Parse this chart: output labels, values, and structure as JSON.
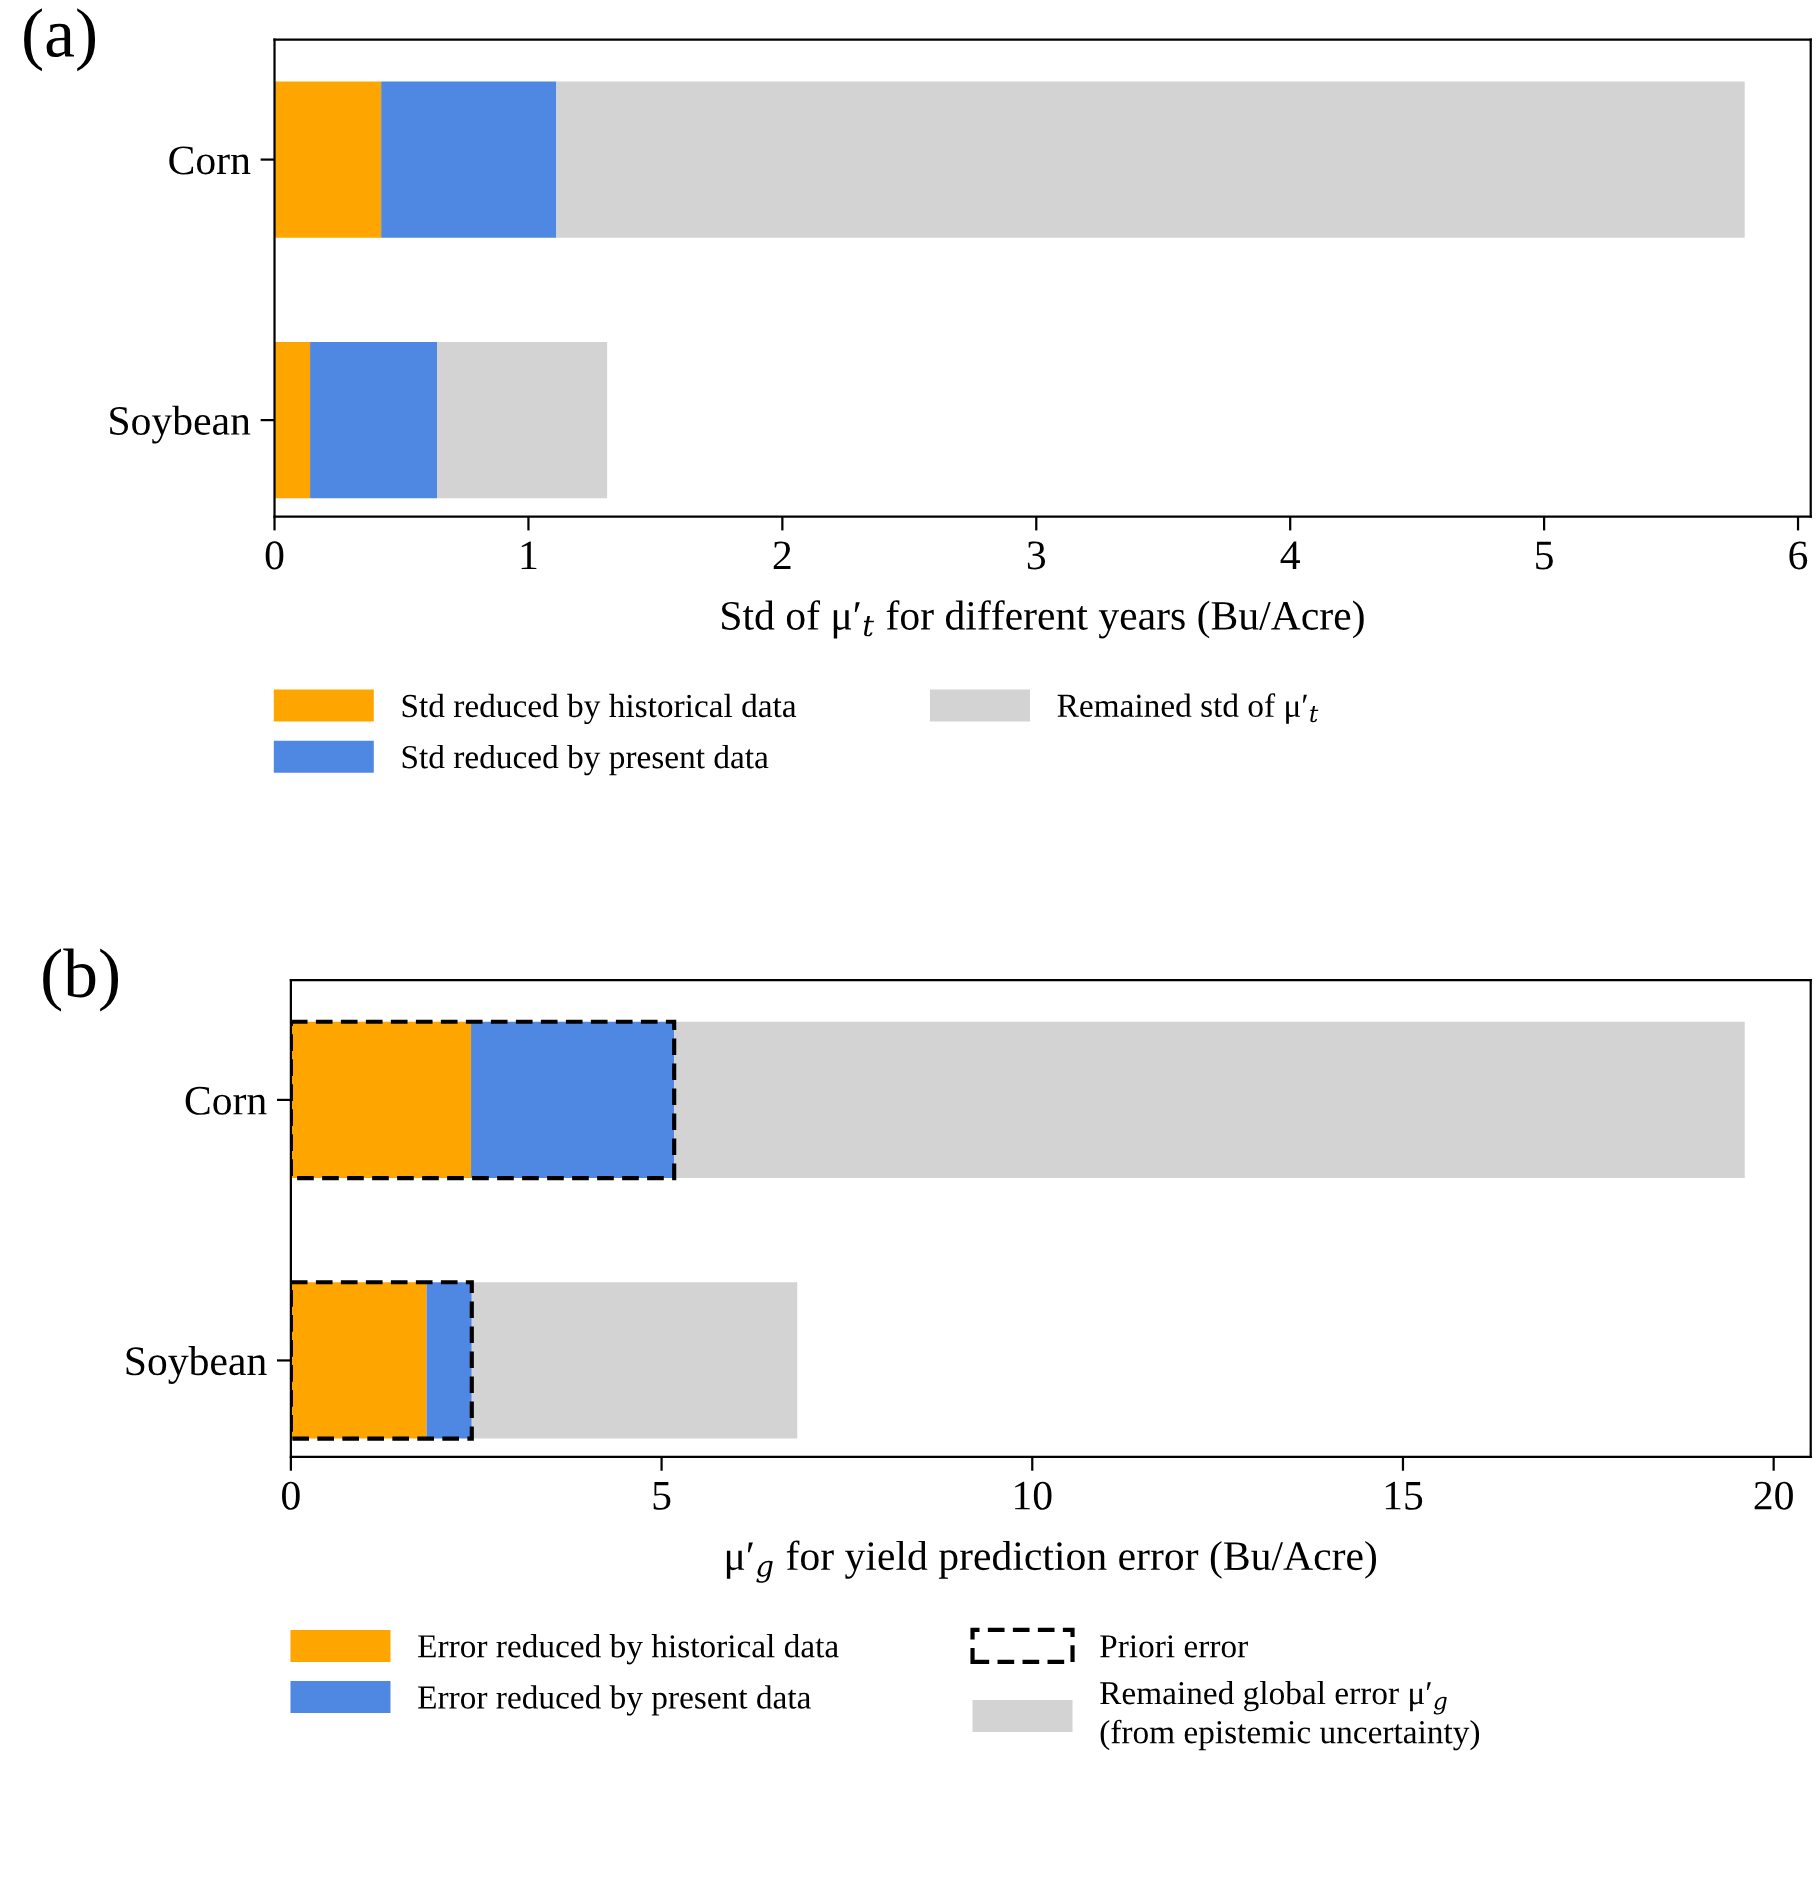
{
  "chart_data": [
    {
      "type": "bar",
      "title": "(a)",
      "orientation": "horizontal",
      "stacked": true,
      "categories": [
        "Corn",
        "Soybean"
      ],
      "xlabel": "Std of μ′$_{t}$ for different years (Bu/Acre)",
      "xlim": [
        0,
        6.05
      ],
      "xticks": [
        0,
        1,
        2,
        3,
        4,
        5,
        6
      ],
      "legend": "bottom",
      "grid": false,
      "series": [
        {
          "name": "Std reduced by historical data",
          "color": "#ffa500",
          "values": [
            0.42,
            0.14
          ]
        },
        {
          "name": "Std reduced by present data",
          "color": "#4f88e3",
          "values": [
            0.69,
            0.5
          ]
        },
        {
          "name": "Remained std of μ′$_{t}$",
          "color": "#d3d3d3",
          "values": [
            4.68,
            0.67
          ]
        }
      ]
    },
    {
      "type": "bar",
      "title": "(b)",
      "orientation": "horizontal",
      "categories": [
        "Corn",
        "Soybean"
      ],
      "xlabel": "μ′$_{g}$ for yield prediction error (Bu/Acre)",
      "xlim": [
        0,
        20.5
      ],
      "xticks": [
        0,
        5,
        10,
        15,
        20
      ],
      "legend": "bottom",
      "grid": false,
      "series": [
        {
          "name": "Error reduced by historical data",
          "color": "#ffa500",
          "base": [
            0,
            0
          ],
          "values": [
            2.43,
            1.83
          ]
        },
        {
          "name": "Error reduced by present data",
          "color": "#4f88e3",
          "base": [
            2.43,
            1.83
          ],
          "values": [
            2.74,
            0.61
          ]
        },
        {
          "name": "Priori error",
          "color": "#000000",
          "line_style": "dashed",
          "base": [
            0,
            0
          ],
          "values": [
            5.17,
            2.44
          ]
        },
        {
          "name": "Remained global error μ′$_{g}$\n(from epistemic uncertainty)",
          "color": "#d3d3d3",
          "base": [
            5.17,
            2.44
          ],
          "values": [
            14.44,
            4.39
          ]
        }
      ]
    }
  ]
}
